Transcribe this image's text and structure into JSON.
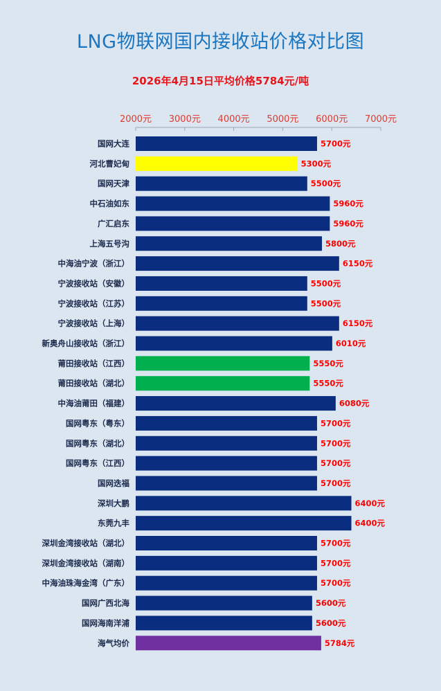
{
  "header": {
    "title": "LNG物联网国内接收站价格对比图",
    "subtitle": "2026年4月15日平均价格5784元/吨"
  },
  "colors": {
    "default_bar": "#0b2d80",
    "yellow_bar": "#ffff00",
    "green_bar": "#00b04f",
    "purple_bar": "#7030a0",
    "tick_text": "#e03a2f",
    "value_text": "#ff0000",
    "category_text": "#1c2b4d",
    "background": "#dce6f1"
  },
  "chart_data": {
    "type": "bar",
    "orientation": "horizontal",
    "title": "LNG物联网国内接收站价格对比图",
    "subtitle": "2026年4月15日平均价格5784元/吨",
    "xlim": [
      2000,
      7000
    ],
    "x_ticks": [
      2000,
      3000,
      4000,
      5000,
      6000,
      7000
    ],
    "x_tick_labels": [
      "2000元",
      "3000元",
      "4000元",
      "5000元",
      "6000元",
      "7000元"
    ],
    "x_axis_position": "top",
    "grid": false,
    "legend": "none",
    "value_suffix": "元",
    "categories": [
      "国网大连",
      "河北曹妃甸",
      "国网天津",
      "中石油如东",
      "广汇启东",
      "上海五号沟",
      "中海油宁波（浙江）",
      "宁波接收站（安徽）",
      "宁波接收站（江苏）",
      "宁波接收站（上海）",
      "新奥舟山接收站（浙江）",
      "莆田接收站（江西）",
      "莆田接收站（湖北）",
      "中海油莆田（福建）",
      "国网粤东（粤东）",
      "国网粤东（湖北）",
      "国网粤东（江西）",
      "国网迭福",
      "深圳大鹏",
      "东莞九丰",
      "深圳金湾接收站（湖北）",
      "深圳金湾接收站（湖南）",
      "中海油珠海金湾（广东）",
      "国网广西北海",
      "国网海南洋浦",
      "海气均价"
    ],
    "values": [
      5700,
      5300,
      5500,
      5960,
      5960,
      5800,
      6150,
      5500,
      5500,
      6150,
      6010,
      5550,
      5550,
      6080,
      5700,
      5700,
      5700,
      5700,
      6400,
      6400,
      5700,
      5700,
      5700,
      5600,
      5600,
      5784
    ],
    "bar_colors": [
      "default_bar",
      "yellow_bar",
      "default_bar",
      "default_bar",
      "default_bar",
      "default_bar",
      "default_bar",
      "default_bar",
      "default_bar",
      "default_bar",
      "default_bar",
      "green_bar",
      "green_bar",
      "default_bar",
      "default_bar",
      "default_bar",
      "default_bar",
      "default_bar",
      "default_bar",
      "default_bar",
      "default_bar",
      "default_bar",
      "default_bar",
      "default_bar",
      "default_bar",
      "purple_bar"
    ]
  }
}
